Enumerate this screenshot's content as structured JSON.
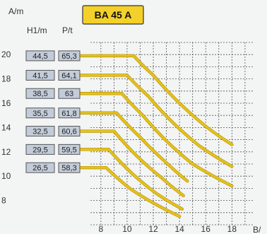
{
  "colors": {
    "background": "#f3f4f4",
    "grid": "#555555",
    "curve": "#e5c21a",
    "curve_edge": "#b8960b",
    "box_fill": "#c3ccd9",
    "box_stroke": "#555555",
    "title_fill": "#f4d12a",
    "title_stroke": "#333333"
  },
  "header": {
    "y_unit": "A/m",
    "x_unit": "B/",
    "col1": "H1/m",
    "col2": "P/t",
    "title": "BA 45 A"
  },
  "chart_data": {
    "type": "line",
    "title": "BA 45 A",
    "xlabel": "B/",
    "ylabel": "A/m",
    "x_ticks": [
      "8",
      "10",
      "12",
      "14",
      "16",
      "18"
    ],
    "y_ticks": [
      "20",
      "18",
      "16",
      "14",
      "12",
      "10",
      "8"
    ],
    "xlim": [
      7.2,
      19.6
    ],
    "ylim": [
      6.0,
      21.0
    ],
    "grid": true,
    "legend_columns": [
      "H1/m",
      "P/t"
    ],
    "series": [
      {
        "h1": "44,5",
        "p": "65,3",
        "x": [
          0,
          10.5,
          12.0,
          14.0,
          16.0,
          18.0
        ],
        "y": [
          19.9,
          19.9,
          18.3,
          16.0,
          14.1,
          12.6
        ]
      },
      {
        "h1": "41,5",
        "p": "64,1",
        "x": [
          0,
          10.0,
          11.6,
          13.5,
          15.5,
          18.0
        ],
        "y": [
          18.3,
          18.3,
          16.6,
          14.4,
          12.5,
          10.8
        ]
      },
      {
        "h1": "38,5",
        "p": "63",
        "x": [
          0,
          9.6,
          11.2,
          13.0,
          15.0,
          18.0
        ],
        "y": [
          16.8,
          16.8,
          15.0,
          12.9,
          11.0,
          9.2
        ]
      },
      {
        "h1": "35,5",
        "p": "61,8",
        "x": [
          0,
          9.2,
          11.0,
          12.8,
          14.6
        ],
        "y": [
          15.2,
          15.2,
          13.2,
          11.3,
          9.6
        ]
      },
      {
        "h1": "32,5",
        "p": "60,6",
        "x": [
          0,
          9.0,
          10.8,
          12.6,
          14.3
        ],
        "y": [
          13.7,
          13.7,
          11.6,
          9.9,
          8.4
        ]
      },
      {
        "h1": "29,5",
        "p": "59,5",
        "x": [
          0,
          8.6,
          10.4,
          12.2,
          14.2
        ],
        "y": [
          12.2,
          12.2,
          10.2,
          8.6,
          7.3
        ]
      },
      {
        "h1": "26,5",
        "p": "58,3",
        "x": [
          0,
          8.4,
          10.2,
          12.0,
          14.0
        ],
        "y": [
          10.7,
          10.7,
          9.0,
          7.8,
          6.7
        ]
      }
    ]
  }
}
